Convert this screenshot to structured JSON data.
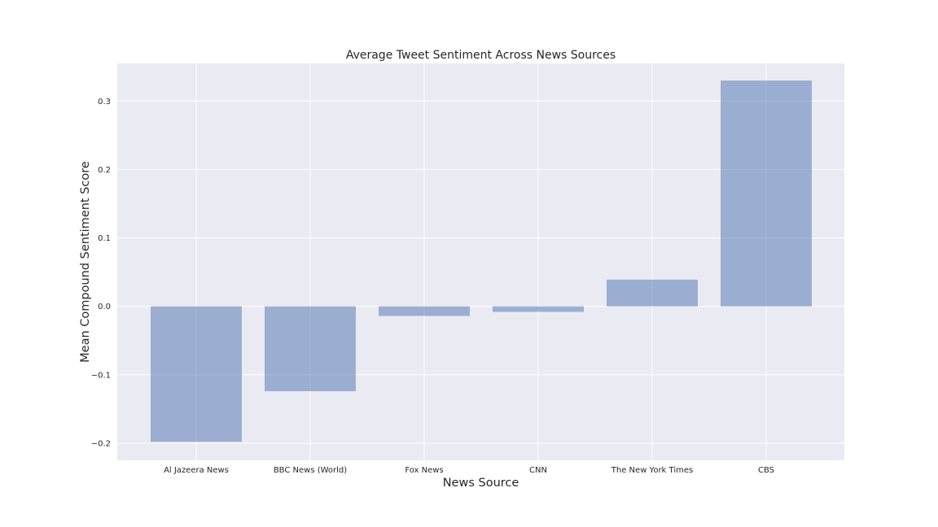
{
  "chart_data": {
    "type": "bar",
    "title": "Average Tweet Sentiment Across News Sources",
    "xlabel": "News Source",
    "ylabel": "Mean Compound Sentiment Score",
    "categories": [
      "Al Jazeera News",
      "BBC News (World)",
      "Fox News",
      "CNN",
      "The New York Times",
      "CBS"
    ],
    "values": [
      -0.198,
      -0.124,
      -0.014,
      -0.008,
      0.039,
      0.33
    ],
    "ylim": [
      -0.225,
      0.355
    ],
    "yticks": [
      -0.2,
      -0.1,
      0.0,
      0.1,
      0.2,
      0.3
    ],
    "ytick_labels": [
      "−0.2",
      "−0.1",
      "0.0",
      "0.1",
      "0.2",
      "0.3"
    ],
    "grid": true,
    "legend": "none",
    "colors": {
      "bar": "#4c72b0",
      "plot_background": "#eaeaf2",
      "grid": "#ffffff"
    }
  }
}
